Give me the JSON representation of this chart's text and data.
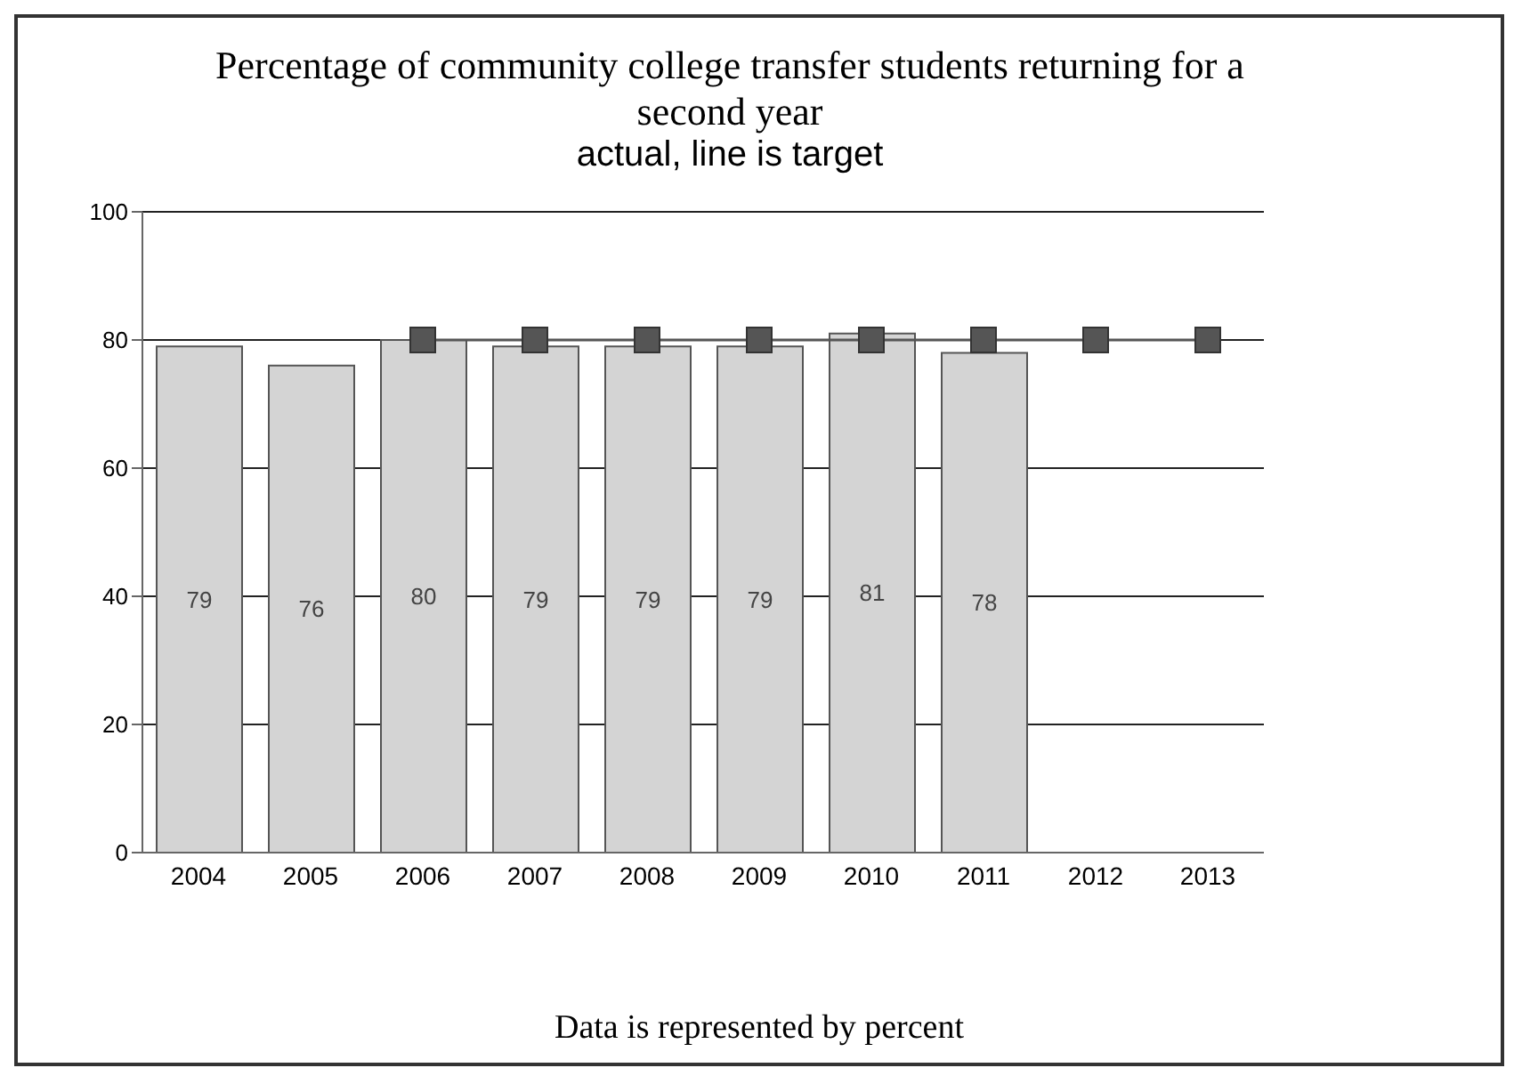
{
  "chart_data": {
    "type": "bar",
    "title": "Percentage of community college transfer students returning for a second year",
    "subtitle": "actual, line is target",
    "annotations": [
      "Data is represented by percent"
    ],
    "categories": [
      "2004",
      "2005",
      "2006",
      "2007",
      "2008",
      "2009",
      "2010",
      "2011",
      "2012",
      "2013"
    ],
    "series": [
      {
        "color": "#d4d4d4",
        "values": [
          79,
          76,
          80,
          79,
          79,
          79,
          81,
          78,
          null,
          null
        ],
        "value_labels": [
          "79",
          "76",
          "80",
          "79",
          "79",
          "79",
          "81",
          "78",
          null,
          null
        ]
      },
      {
        "type": "line",
        "color": "#555555",
        "marker": "square",
        "values": [
          null,
          null,
          80,
          80,
          80,
          80,
          80,
          80,
          80,
          80
        ]
      }
    ],
    "ylim": [
      0,
      100
    ],
    "yticks": [
      0,
      20,
      40,
      60,
      80,
      100
    ],
    "grid": "y",
    "legend": false
  }
}
